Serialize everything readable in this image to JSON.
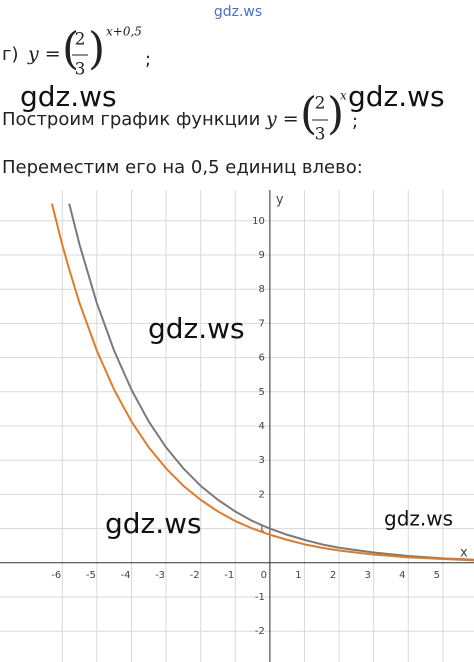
{
  "line1": {
    "label": "г)",
    "lhs": "y =",
    "numerator": "2",
    "denominator": "3",
    "exponent": "x+0,5",
    "tail": ";"
  },
  "line2": {
    "text": "Построим график функции",
    "lhs": "y =",
    "numerator": "2",
    "denominator": "3",
    "exponent": "x",
    "tail": ";"
  },
  "line3": {
    "text": "Переместим его на 0,5 единиц влево:"
  },
  "watermarks": [
    "gdz.ws",
    "gdz.ws",
    "gdz.ws",
    "gdz.ws",
    "gdz.ws",
    "gdz.ws"
  ],
  "chart_data": {
    "type": "line",
    "x_label": "x",
    "y_label": "y",
    "grid": true,
    "xlim": [
      -7.8,
      5.9
    ],
    "ylim": [
      -2.9,
      10.9
    ],
    "xticks": [
      -6,
      -5,
      -4,
      -3,
      -2,
      -1,
      0,
      1,
      2,
      3,
      4,
      5
    ],
    "yticks": [
      -2,
      -1,
      1,
      2,
      3,
      4,
      5,
      6,
      7,
      8,
      9,
      10
    ],
    "x": [
      -6.3,
      -6,
      -5.8,
      -5.5,
      -5,
      -4.5,
      -4,
      -3.5,
      -3,
      -2.5,
      -2,
      -1.5,
      -1,
      -0.5,
      0,
      0.5,
      1,
      1.5,
      2,
      3,
      4,
      5,
      5.9
    ],
    "series": [
      {
        "color": "#7a7a7a",
        "values": [
          null,
          null,
          10.5,
          9.3,
          7.59,
          6.2,
          5.06,
          4.13,
          3.375,
          2.76,
          2.25,
          1.84,
          1.5,
          1.22,
          1,
          0.82,
          0.67,
          0.54,
          0.44,
          0.3,
          0.2,
          0.13,
          0.09
        ]
      },
      {
        "color": "#e07b2a",
        "values": [
          10.5,
          9.3,
          8.58,
          7.59,
          6.2,
          5.06,
          4.13,
          3.375,
          2.76,
          2.25,
          1.84,
          1.5,
          1.22,
          1,
          0.82,
          0.67,
          0.54,
          0.44,
          0.36,
          0.24,
          0.16,
          0.11,
          0.07
        ]
      }
    ]
  }
}
